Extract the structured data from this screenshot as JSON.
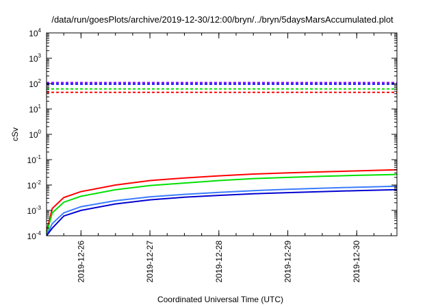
{
  "chart_data": {
    "type": "line",
    "title": "/data/run/goesPlots/archive/2019-12-30/12:00/bryn/../bryn/5daysMarsAccumulated.plot",
    "xlabel": "Coordinated Universal Time (UTC)",
    "ylabel": "cSv",
    "x_ticks": [
      "2019-12-26",
      "2019-12-27",
      "2019-12-28",
      "2019-12-29",
      "2019-12-30"
    ],
    "y_ticks": [
      {
        "base": "10",
        "exp": "4"
      },
      {
        "base": "10",
        "exp": "3"
      },
      {
        "base": "10",
        "exp": "2"
      },
      {
        "base": "10",
        "exp": "1"
      },
      {
        "base": "10",
        "exp": "0"
      },
      {
        "base": "10",
        "exp": "-1"
      },
      {
        "base": "10",
        "exp": "-2"
      },
      {
        "base": "10",
        "exp": "-3"
      },
      {
        "base": "10",
        "exp": "-4"
      }
    ],
    "xlim": [
      "2019-12-25T12:00",
      "2019-12-30T14:00"
    ],
    "ylim": [
      0.0001,
      10000
    ],
    "y_scale": "log",
    "grid": false,
    "series": [
      {
        "color": "#ff0000",
        "style": "solid",
        "x": [
          "2019-12-25T12:00",
          "2019-12-25T14:00",
          "2019-12-25T18:00",
          "2019-12-26T00:00",
          "2019-12-26T12:00",
          "2019-12-27T00:00",
          "2019-12-27T12:00",
          "2019-12-28T00:00",
          "2019-12-28T12:00",
          "2019-12-29T00:00",
          "2019-12-29T12:00",
          "2019-12-30T00:00",
          "2019-12-30T14:00"
        ],
        "y": [
          0.00015,
          0.0012,
          0.0032,
          0.0055,
          0.01,
          0.015,
          0.019,
          0.023,
          0.027,
          0.03,
          0.033,
          0.036,
          0.04
        ]
      },
      {
        "color": "#00e000",
        "style": "solid",
        "x": [
          "2019-12-25T12:00",
          "2019-12-25T14:00",
          "2019-12-25T18:00",
          "2019-12-26T00:00",
          "2019-12-26T12:00",
          "2019-12-27T00:00",
          "2019-12-27T12:00",
          "2019-12-28T00:00",
          "2019-12-28T12:00",
          "2019-12-29T00:00",
          "2019-12-29T12:00",
          "2019-12-30T00:00",
          "2019-12-30T14:00"
        ],
        "y": [
          0.00012,
          0.0008,
          0.0021,
          0.0036,
          0.0065,
          0.0095,
          0.012,
          0.015,
          0.018,
          0.02,
          0.022,
          0.024,
          0.026
        ]
      },
      {
        "color": "#3a7bff",
        "style": "solid",
        "x": [
          "2019-12-25T12:00",
          "2019-12-25T14:00",
          "2019-12-25T18:00",
          "2019-12-26T00:00",
          "2019-12-26T12:00",
          "2019-12-27T00:00",
          "2019-12-27T12:00",
          "2019-12-28T00:00",
          "2019-12-28T12:00",
          "2019-12-29T00:00",
          "2019-12-29T12:00",
          "2019-12-30T00:00",
          "2019-12-30T14:00"
        ],
        "y": [
          0.0001,
          0.0003,
          0.0008,
          0.0014,
          0.0024,
          0.0034,
          0.0043,
          0.0051,
          0.006,
          0.0068,
          0.0075,
          0.0082,
          0.009
        ]
      },
      {
        "color": "#0000d0",
        "style": "solid",
        "x": [
          "2019-12-25T12:00",
          "2019-12-25T14:00",
          "2019-12-25T18:00",
          "2019-12-26T00:00",
          "2019-12-26T12:00",
          "2019-12-27T00:00",
          "2019-12-27T12:00",
          "2019-12-28T00:00",
          "2019-12-28T12:00",
          "2019-12-29T00:00",
          "2019-12-29T12:00",
          "2019-12-30T00:00",
          "2019-12-30T14:00"
        ],
        "y": [
          0.0001,
          0.0002,
          0.0006,
          0.001,
          0.0018,
          0.0026,
          0.0033,
          0.0039,
          0.0045,
          0.005,
          0.0055,
          0.006,
          0.0066
        ]
      },
      {
        "color": "#8000ff",
        "style": "dashed",
        "x": [
          "2019-12-25T12:00",
          "2019-12-30T14:00"
        ],
        "y": [
          110,
          110
        ]
      },
      {
        "color": "#0000ff",
        "style": "dashed",
        "x": [
          "2019-12-25T12:00",
          "2019-12-30T14:00"
        ],
        "y": [
          95,
          95
        ]
      },
      {
        "color": "#00e000",
        "style": "dashed",
        "x": [
          "2019-12-25T12:00",
          "2019-12-30T14:00"
        ],
        "y": [
          62,
          62
        ]
      },
      {
        "color": "#ff0000",
        "style": "dashed",
        "x": [
          "2019-12-25T12:00",
          "2019-12-30T14:00"
        ],
        "y": [
          45,
          45
        ]
      }
    ]
  }
}
